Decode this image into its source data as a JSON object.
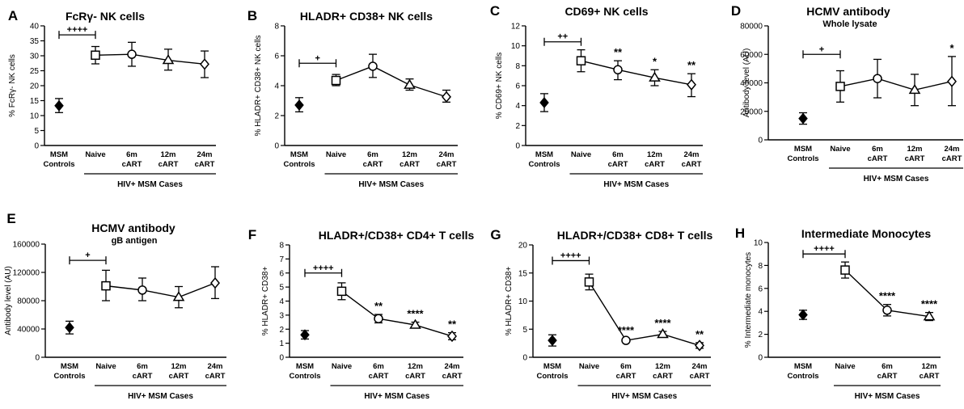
{
  "chart_data": [
    {
      "type": "line",
      "letter": "A",
      "title": "FcRγ- NK cells",
      "subtitle": "",
      "ylabel": "% FcRγ- NK cells",
      "ylim": [
        0,
        40
      ],
      "yticks": [
        0,
        5,
        10,
        15,
        20,
        25,
        30,
        35,
        40
      ],
      "ytick_labels": [
        "0",
        "5",
        "10",
        "15",
        "20",
        "25",
        "30",
        "35",
        "40"
      ],
      "categories": [
        "MSM Controls",
        "Naive",
        "6m cART",
        "12m cART",
        "24m cART"
      ],
      "markers": [
        "diamond-filled",
        "square",
        "circle",
        "triangle",
        "diamond"
      ],
      "means": [
        13.3,
        30.2,
        30.5,
        28.5,
        27.2
      ],
      "lower": [
        11.0,
        27.3,
        26.5,
        25.2,
        22.7
      ],
      "upper": [
        15.7,
        33.1,
        34.5,
        32.2,
        31.6
      ],
      "bracket_label": "++++",
      "bracket_y": 37,
      "stars": [
        "",
        "",
        "",
        "",
        ""
      ],
      "group_label": "HIV+ MSM Cases"
    },
    {
      "type": "line",
      "letter": "B",
      "title": "HLADR+ CD38+ NK cells",
      "subtitle": "",
      "ylabel": "% HLADR+ CD38+ NK cells",
      "ylim": [
        0,
        8
      ],
      "yticks": [
        0,
        2,
        4,
        6,
        8
      ],
      "ytick_labels": [
        "0",
        "2",
        "4",
        "6",
        "8"
      ],
      "categories": [
        "MSM Controls",
        "Naive",
        "6m cART",
        "12m cART",
        "24m cART"
      ],
      "markers": [
        "diamond-filled",
        "square",
        "circle",
        "triangle",
        "diamond"
      ],
      "means": [
        2.7,
        4.35,
        5.3,
        4.05,
        3.25
      ],
      "lower": [
        2.25,
        4.0,
        4.55,
        3.7,
        2.9
      ],
      "upper": [
        3.2,
        4.75,
        6.1,
        4.45,
        3.7
      ],
      "bracket_label": "+",
      "bracket_y": 5.5,
      "stars": [
        "",
        "",
        "",
        "",
        ""
      ],
      "group_label": "HIV+ MSM Cases"
    },
    {
      "type": "line",
      "letter": "C",
      "title": "CD69+ NK cells",
      "subtitle": "",
      "ylabel": "% CD69+ NK cells",
      "ylim": [
        0,
        12
      ],
      "yticks": [
        0,
        2,
        4,
        6,
        8,
        10,
        12
      ],
      "ytick_labels": [
        "0",
        "2",
        "4",
        "6",
        "8",
        "10",
        "12"
      ],
      "categories": [
        "MSM Controls",
        "Naive",
        "6m cART",
        "12m cART",
        "24m cART"
      ],
      "markers": [
        "diamond-filled",
        "square",
        "circle",
        "triangle",
        "diamond"
      ],
      "means": [
        4.3,
        8.5,
        7.6,
        6.8,
        6.1
      ],
      "lower": [
        3.4,
        7.4,
        6.6,
        6.0,
        4.9
      ],
      "upper": [
        5.2,
        9.6,
        8.5,
        7.6,
        7.2
      ],
      "bracket_label": "++",
      "bracket_y": 10.4,
      "stars": [
        "",
        "",
        "**",
        "*",
        "**"
      ],
      "group_label": "HIV+ MSM Cases"
    },
    {
      "type": "line",
      "letter": "D",
      "title": "HCMV antibody",
      "subtitle": "Whole lysate",
      "ylabel": "Antibody level (AU)",
      "ylim": [
        0,
        80000
      ],
      "yticks": [
        0,
        20000,
        40000,
        60000,
        80000
      ],
      "ytick_labels": [
        "0",
        "20000",
        "40000",
        "60000",
        "80000"
      ],
      "categories": [
        "MSM Controls",
        "Naive",
        "6m cART",
        "12m cART",
        "24m cART"
      ],
      "markers": [
        "diamond-filled",
        "square",
        "circle",
        "triangle",
        "diamond"
      ],
      "means": [
        15000,
        37500,
        43000,
        35000,
        41000
      ],
      "lower": [
        11000,
        26500,
        29500,
        24000,
        24000
      ],
      "upper": [
        19000,
        48500,
        56500,
        46000,
        58500
      ],
      "bracket_label": "+",
      "bracket_y": 60000,
      "stars": [
        "",
        "",
        "",
        "",
        "*"
      ],
      "group_label": "HIV+ MSM Cases"
    },
    {
      "type": "line",
      "letter": "E",
      "title": "HCMV antibody",
      "subtitle": "gB antigen",
      "ylabel": "Antibody level (AU)",
      "ylim": [
        0,
        160000
      ],
      "yticks": [
        0,
        40000,
        80000,
        120000,
        160000
      ],
      "ytick_labels": [
        "0",
        "40000",
        "80000",
        "120000",
        "160000"
      ],
      "categories": [
        "MSM Controls",
        "Naive",
        "6m cART",
        "12m cART",
        "24m cART"
      ],
      "markers": [
        "diamond-filled",
        "square",
        "circle",
        "triangle",
        "diamond"
      ],
      "means": [
        42000,
        101000,
        95000,
        85000,
        105000
      ],
      "lower": [
        33000,
        80000,
        80000,
        70000,
        83000
      ],
      "upper": [
        51000,
        123000,
        112000,
        100000,
        128000
      ],
      "bracket_label": "+",
      "bracket_y": 137000,
      "stars": [
        "",
        "",
        "",
        "",
        ""
      ],
      "group_label": "HIV+ MSM Cases"
    },
    {
      "type": "line",
      "letter": "F",
      "title": "HLADR+/CD38+ CD4+ T cells",
      "subtitle": "",
      "ylabel": "% HLADR+ CD38+",
      "ylim": [
        0,
        8
      ],
      "yticks": [
        0,
        1,
        2,
        3,
        4,
        5,
        6,
        7,
        8
      ],
      "ytick_labels": [
        "0",
        "1",
        "2",
        "3",
        "4",
        "5",
        "6",
        "7",
        "8"
      ],
      "categories": [
        "MSM Controls",
        "Naive",
        "6m cART",
        "12m cART",
        "24m cART"
      ],
      "markers": [
        "diamond-filled",
        "square",
        "circle",
        "triangle",
        "diamond"
      ],
      "means": [
        1.6,
        4.7,
        2.75,
        2.3,
        1.5
      ],
      "lower": [
        1.3,
        4.1,
        2.45,
        2.1,
        1.25
      ],
      "upper": [
        1.9,
        5.3,
        3.05,
        2.5,
        1.75
      ],
      "bracket_label": "++++",
      "bracket_y": 6.0,
      "stars": [
        "",
        "",
        "**",
        "****",
        "**"
      ],
      "group_label": "HIV+ MSM Cases"
    },
    {
      "type": "line",
      "letter": "G",
      "title": "HLADR+/CD38+ CD8+ T cells",
      "subtitle": "",
      "ylabel": "% HLADR+ CD38+",
      "ylim": [
        0,
        20
      ],
      "yticks": [
        0,
        5,
        10,
        15,
        20
      ],
      "ytick_labels": [
        "0",
        "5",
        "10",
        "15",
        "20"
      ],
      "categories": [
        "MSM Controls",
        "Naive",
        "6m cART",
        "12m cART",
        "24m cART"
      ],
      "markers": [
        "diamond-filled",
        "square",
        "circle",
        "triangle",
        "diamond"
      ],
      "means": [
        3.0,
        13.4,
        3.0,
        4.1,
        2.1
      ],
      "lower": [
        2.0,
        12.0,
        2.7,
        3.6,
        1.6
      ],
      "upper": [
        4.0,
        14.8,
        3.3,
        4.6,
        2.6
      ],
      "bracket_label": "++++",
      "bracket_y": 17.2,
      "stars": [
        "",
        "",
        "****",
        "****",
        "**"
      ],
      "group_label": "HIV+ MSM Cases"
    },
    {
      "type": "line",
      "letter": "H",
      "title": "Intermediate Monocytes",
      "subtitle": "",
      "ylabel": "% Intermediate monocytes",
      "ylim": [
        0,
        10
      ],
      "yticks": [
        0,
        2,
        4,
        6,
        8,
        10
      ],
      "ytick_labels": [
        "0",
        "2",
        "4",
        "6",
        "8",
        "10"
      ],
      "categories": [
        "MSM Controls",
        "Naive",
        "6m cART",
        "12m cART"
      ],
      "markers": [
        "diamond-filled",
        "square",
        "circle",
        "triangle"
      ],
      "means": [
        3.7,
        7.6,
        4.1,
        3.55
      ],
      "lower": [
        3.3,
        6.9,
        3.6,
        3.2
      ],
      "upper": [
        4.1,
        8.3,
        4.6,
        3.9
      ],
      "bracket_label": "++++",
      "bracket_y": 9.0,
      "stars": [
        "",
        "",
        "****",
        "****"
      ],
      "group_label": "HIV+ MSM Cases"
    }
  ]
}
